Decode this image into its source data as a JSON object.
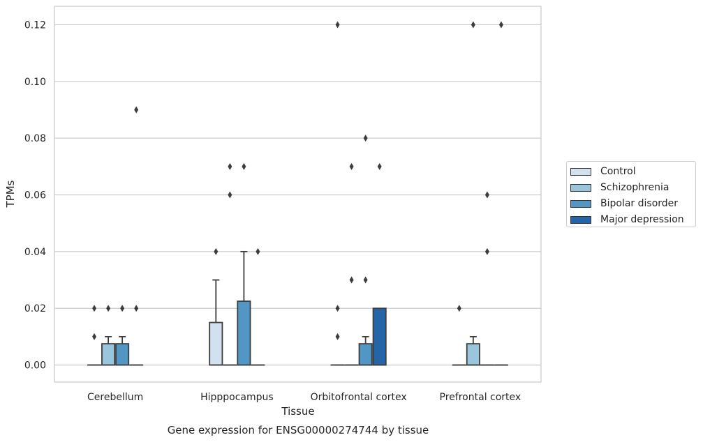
{
  "chart_data": {
    "type": "box",
    "xlabel": "Tissue",
    "ylabel": "TPMs",
    "caption": "Gene expression for ENSG00000274744 by tissue",
    "ylim": [
      -0.006,
      0.1265
    ],
    "yticks": [
      "0.00",
      "0.02",
      "0.04",
      "0.06",
      "0.08",
      "0.10",
      "0.12"
    ],
    "grid": "horizontal",
    "legend_position": "right",
    "categories": [
      "Cerebellum",
      "Hipppocampus",
      "Orbitofrontal cortex",
      "Prefrontal cortex"
    ],
    "series": [
      {
        "name": "Control",
        "color": "#d1e1ef"
      },
      {
        "name": "Schizophrenia",
        "color": "#9ac6dd"
      },
      {
        "name": "Bipolar disorder",
        "color": "#5196c4"
      },
      {
        "name": "Major depression",
        "color": "#2465a8"
      }
    ],
    "boxes": [
      {
        "category": "Cerebellum",
        "series": "Control",
        "q1": 0,
        "median": 0,
        "q3": 0,
        "whisker_low": 0,
        "whisker_high": 0,
        "outliers": [
          0.02,
          0.01
        ]
      },
      {
        "category": "Cerebellum",
        "series": "Schizophrenia",
        "q1": 0,
        "median": 0,
        "q3": 0.0075,
        "whisker_low": 0,
        "whisker_high": 0.01,
        "outliers": [
          0.02
        ]
      },
      {
        "category": "Cerebellum",
        "series": "Bipolar disorder",
        "q1": 0,
        "median": 0,
        "q3": 0.0075,
        "whisker_low": 0,
        "whisker_high": 0.01,
        "outliers": [
          0.02
        ]
      },
      {
        "category": "Cerebellum",
        "series": "Major depression",
        "q1": 0,
        "median": 0,
        "q3": 0,
        "whisker_low": 0,
        "whisker_high": 0,
        "outliers": [
          0.09,
          0.02
        ]
      },
      {
        "category": "Hipppocampus",
        "series": "Control",
        "q1": 0,
        "median": 0,
        "q3": 0.015,
        "whisker_low": 0,
        "whisker_high": 0.03,
        "outliers": [
          0.04
        ]
      },
      {
        "category": "Hipppocampus",
        "series": "Schizophrenia",
        "q1": 0,
        "median": 0,
        "q3": 0,
        "whisker_low": 0,
        "whisker_high": 0,
        "outliers": [
          0.07,
          0.06
        ]
      },
      {
        "category": "Hipppocampus",
        "series": "Bipolar disorder",
        "q1": 0,
        "median": 0,
        "q3": 0.0225,
        "whisker_low": 0,
        "whisker_high": 0.04,
        "outliers": [
          0.07
        ]
      },
      {
        "category": "Hipppocampus",
        "series": "Major depression",
        "q1": 0,
        "median": 0,
        "q3": 0,
        "whisker_low": 0,
        "whisker_high": 0,
        "outliers": [
          0.04
        ]
      },
      {
        "category": "Orbitofrontal cortex",
        "series": "Control",
        "q1": 0,
        "median": 0,
        "q3": 0,
        "whisker_low": 0,
        "whisker_high": 0,
        "outliers": [
          0.12,
          0.02,
          0.01
        ]
      },
      {
        "category": "Orbitofrontal cortex",
        "series": "Schizophrenia",
        "q1": 0,
        "median": 0,
        "q3": 0,
        "whisker_low": 0,
        "whisker_high": 0,
        "outliers": [
          0.07,
          0.03
        ]
      },
      {
        "category": "Orbitofrontal cortex",
        "series": "Bipolar disorder",
        "q1": 0,
        "median": 0,
        "q3": 0.0075,
        "whisker_low": 0,
        "whisker_high": 0.01,
        "outliers": [
          0.08,
          0.03
        ]
      },
      {
        "category": "Orbitofrontal cortex",
        "series": "Major depression",
        "q1": 0,
        "median": 0,
        "q3": 0.02,
        "whisker_low": 0,
        "whisker_high": 0.02,
        "outliers": [
          0.07
        ]
      },
      {
        "category": "Prefrontal cortex",
        "series": "Control",
        "q1": 0,
        "median": 0,
        "q3": 0,
        "whisker_low": 0,
        "whisker_high": 0,
        "outliers": [
          0.02
        ]
      },
      {
        "category": "Prefrontal cortex",
        "series": "Schizophrenia",
        "q1": 0,
        "median": 0,
        "q3": 0.0075,
        "whisker_low": 0,
        "whisker_high": 0.01,
        "outliers": [
          0.12
        ]
      },
      {
        "category": "Prefrontal cortex",
        "series": "Bipolar disorder",
        "q1": 0,
        "median": 0,
        "q3": 0,
        "whisker_low": 0,
        "whisker_high": 0,
        "outliers": [
          0.06,
          0.04
        ]
      },
      {
        "category": "Prefrontal cortex",
        "series": "Major depression",
        "q1": 0,
        "median": 0,
        "q3": 0,
        "whisker_low": 0,
        "whisker_high": 0,
        "outliers": [
          0.12
        ]
      }
    ]
  }
}
